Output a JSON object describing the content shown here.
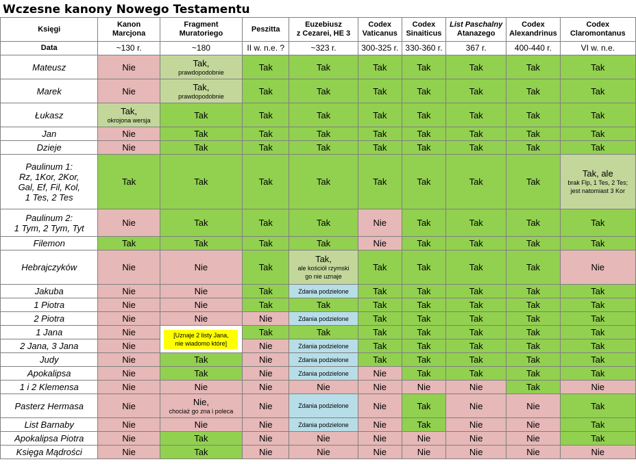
{
  "title": "Wczesne kanony Nowego Testamentu",
  "header": {
    "books_label": "Księgi",
    "date_label": "Data",
    "columns": [
      {
        "line1": "Kanon",
        "line2": "Marcjona",
        "date": "~130 r.",
        "italic": false
      },
      {
        "line1": "Fragment",
        "line2": "Muratoriego",
        "date": "~180",
        "italic": false
      },
      {
        "line1": "Peszitta",
        "line2": "",
        "date": "II w. n.e. ?",
        "italic": false
      },
      {
        "line1": "Euzebiusz",
        "line2": "z Cezarei, HE 3",
        "date": "~323 r.",
        "italic": false
      },
      {
        "line1": "Codex",
        "line2": "Vaticanus",
        "date": "300-325 r.",
        "italic": false
      },
      {
        "line1": "Codex",
        "line2": "Sinaiticus",
        "date": "330-360 r.",
        "italic": false
      },
      {
        "line1": "List Paschalny",
        "line2": "Atanazego",
        "date": "367 r.",
        "italic": true
      },
      {
        "line1": "Codex",
        "line2": "Alexandrinus",
        "date": "400-440 r.",
        "italic": false
      },
      {
        "line1": "Codex",
        "line2": "Claromontanus",
        "date": "VI w. n.e.",
        "italic": false
      }
    ]
  },
  "legend_colors": {
    "tak": "#92d050",
    "nie": "#e6b8b7",
    "probable": "#c4d79b",
    "disputed": "#b7dee8",
    "special": "#ffff00"
  },
  "rows": [
    {
      "book": [
        "Mateusz"
      ],
      "cells": [
        {
          "t": "Nie",
          "c": "nie"
        },
        {
          "t": "Tak,",
          "s": "prawdopodobnie",
          "c": "prob"
        },
        {
          "t": "Tak",
          "c": "tak"
        },
        {
          "t": "Tak",
          "c": "tak"
        },
        {
          "t": "Tak",
          "c": "tak"
        },
        {
          "t": "Tak",
          "c": "tak"
        },
        {
          "t": "Tak",
          "c": "tak"
        },
        {
          "t": "Tak",
          "c": "tak"
        },
        {
          "t": "Tak",
          "c": "tak"
        }
      ]
    },
    {
      "book": [
        "Marek"
      ],
      "cells": [
        {
          "t": "Nie",
          "c": "nie"
        },
        {
          "t": "Tak,",
          "s": "prawdopodobnie",
          "c": "prob"
        },
        {
          "t": "Tak",
          "c": "tak"
        },
        {
          "t": "Tak",
          "c": "tak"
        },
        {
          "t": "Tak",
          "c": "tak"
        },
        {
          "t": "Tak",
          "c": "tak"
        },
        {
          "t": "Tak",
          "c": "tak"
        },
        {
          "t": "Tak",
          "c": "tak"
        },
        {
          "t": "Tak",
          "c": "tak"
        }
      ]
    },
    {
      "book": [
        "Łukasz"
      ],
      "cells": [
        {
          "t": "Tak,",
          "s": "okrojona wersja",
          "c": "prob"
        },
        {
          "t": "Tak",
          "c": "tak"
        },
        {
          "t": "Tak",
          "c": "tak"
        },
        {
          "t": "Tak",
          "c": "tak"
        },
        {
          "t": "Tak",
          "c": "tak"
        },
        {
          "t": "Tak",
          "c": "tak"
        },
        {
          "t": "Tak",
          "c": "tak"
        },
        {
          "t": "Tak",
          "c": "tak"
        },
        {
          "t": "Tak",
          "c": "tak"
        }
      ]
    },
    {
      "book": [
        "Jan"
      ],
      "cells": [
        {
          "t": "Nie",
          "c": "nie"
        },
        {
          "t": "Tak",
          "c": "tak"
        },
        {
          "t": "Tak",
          "c": "tak"
        },
        {
          "t": "Tak",
          "c": "tak"
        },
        {
          "t": "Tak",
          "c": "tak"
        },
        {
          "t": "Tak",
          "c": "tak"
        },
        {
          "t": "Tak",
          "c": "tak"
        },
        {
          "t": "Tak",
          "c": "tak"
        },
        {
          "t": "Tak",
          "c": "tak"
        }
      ]
    },
    {
      "book": [
        "Dzieje"
      ],
      "cells": [
        {
          "t": "Nie",
          "c": "nie"
        },
        {
          "t": "Tak",
          "c": "tak"
        },
        {
          "t": "Tak",
          "c": "tak"
        },
        {
          "t": "Tak",
          "c": "tak"
        },
        {
          "t": "Tak",
          "c": "tak"
        },
        {
          "t": "Tak",
          "c": "tak"
        },
        {
          "t": "Tak",
          "c": "tak"
        },
        {
          "t": "Tak",
          "c": "tak"
        },
        {
          "t": "Tak",
          "c": "tak"
        }
      ]
    },
    {
      "book": [
        "Paulinum 1:",
        "Rz, 1Kor, 2Kor,",
        "Gal, Ef, Fil, Kol,",
        "1 Tes, 2 Tes"
      ],
      "cells": [
        {
          "t": "Tak",
          "c": "tak"
        },
        {
          "t": "Tak",
          "c": "tak"
        },
        {
          "t": "Tak",
          "c": "tak"
        },
        {
          "t": "Tak",
          "c": "tak"
        },
        {
          "t": "Tak",
          "c": "tak"
        },
        {
          "t": "Tak",
          "c": "tak"
        },
        {
          "t": "Tak",
          "c": "tak"
        },
        {
          "t": "Tak",
          "c": "tak"
        },
        {
          "t": "Tak, ale",
          "s": "brak Flp, 1 Tes, 2 Tes;",
          "s2": "jest natomiast 3 Kor",
          "c": "prob"
        }
      ]
    },
    {
      "book": [
        "Paulinum 2:",
        "1 Tym, 2 Tym, Tyt"
      ],
      "cells": [
        {
          "t": "Nie",
          "c": "nie"
        },
        {
          "t": "Tak",
          "c": "tak"
        },
        {
          "t": "Tak",
          "c": "tak"
        },
        {
          "t": "Tak",
          "c": "tak"
        },
        {
          "t": "Nie",
          "c": "nie"
        },
        {
          "t": "Tak",
          "c": "tak"
        },
        {
          "t": "Tak",
          "c": "tak"
        },
        {
          "t": "Tak",
          "c": "tak"
        },
        {
          "t": "Tak",
          "c": "tak"
        }
      ]
    },
    {
      "book": [
        "Filemon"
      ],
      "cells": [
        {
          "t": "Tak",
          "c": "tak"
        },
        {
          "t": "Tak",
          "c": "tak"
        },
        {
          "t": "Tak",
          "c": "tak"
        },
        {
          "t": "Tak",
          "c": "tak"
        },
        {
          "t": "Nie",
          "c": "nie"
        },
        {
          "t": "Tak",
          "c": "tak"
        },
        {
          "t": "Tak",
          "c": "tak"
        },
        {
          "t": "Tak",
          "c": "tak"
        },
        {
          "t": "Tak",
          "c": "tak"
        }
      ]
    },
    {
      "book": [
        "Hebrajczyków"
      ],
      "cells": [
        {
          "t": "Nie",
          "c": "nie"
        },
        {
          "t": "Nie",
          "c": "nie"
        },
        {
          "t": "Tak",
          "c": "tak"
        },
        {
          "t": "Tak,",
          "s": "ale kościół rzymski",
          "s2": "go nie uznaje",
          "c": "prob"
        },
        {
          "t": "Tak",
          "c": "tak"
        },
        {
          "t": "Tak",
          "c": "tak"
        },
        {
          "t": "Tak",
          "c": "tak"
        },
        {
          "t": "Tak",
          "c": "tak"
        },
        {
          "t": "Nie",
          "c": "nie"
        }
      ]
    },
    {
      "book": [
        "Jakuba"
      ],
      "cells": [
        {
          "t": "Nie",
          "c": "nie"
        },
        {
          "t": "Nie",
          "c": "nie"
        },
        {
          "t": "Tak",
          "c": "tak"
        },
        {
          "t": "",
          "s": "Zdania podzielone",
          "c": "disp"
        },
        {
          "t": "Tak",
          "c": "tak"
        },
        {
          "t": "Tak",
          "c": "tak"
        },
        {
          "t": "Tak",
          "c": "tak"
        },
        {
          "t": "Tak",
          "c": "tak"
        },
        {
          "t": "Tak",
          "c": "tak"
        }
      ]
    },
    {
      "book": [
        "1 Piotra"
      ],
      "cells": [
        {
          "t": "Nie",
          "c": "nie"
        },
        {
          "t": "Nie",
          "c": "nie"
        },
        {
          "t": "Tak",
          "c": "tak"
        },
        {
          "t": "Tak",
          "c": "tak"
        },
        {
          "t": "Tak",
          "c": "tak"
        },
        {
          "t": "Tak",
          "c": "tak"
        },
        {
          "t": "Tak",
          "c": "tak"
        },
        {
          "t": "Tak",
          "c": "tak"
        },
        {
          "t": "Tak",
          "c": "tak"
        }
      ]
    },
    {
      "book": [
        "2 Piotra"
      ],
      "cells": [
        {
          "t": "Nie",
          "c": "nie"
        },
        {
          "t": "Nie",
          "c": "nie"
        },
        {
          "t": "Nie",
          "c": "nie"
        },
        {
          "t": "",
          "s": "Zdania podzielone",
          "c": "disp"
        },
        {
          "t": "Tak",
          "c": "tak"
        },
        {
          "t": "Tak",
          "c": "tak"
        },
        {
          "t": "Tak",
          "c": "tak"
        },
        {
          "t": "Tak",
          "c": "tak"
        },
        {
          "t": "Tak",
          "c": "tak"
        }
      ]
    },
    {
      "book": [
        "1 Jana"
      ],
      "cells": [
        {
          "t": "Nie",
          "c": "nie"
        },
        {
          "t": "",
          "s": "[Uznaje 2 listy Jana,",
          "s2": "nie wiadomo które]",
          "c": "yel",
          "rowspan": 2
        },
        {
          "t": "Tak",
          "c": "tak"
        },
        {
          "t": "Tak",
          "c": "tak"
        },
        {
          "t": "Tak",
          "c": "tak"
        },
        {
          "t": "Tak",
          "c": "tak"
        },
        {
          "t": "Tak",
          "c": "tak"
        },
        {
          "t": "Tak",
          "c": "tak"
        },
        {
          "t": "Tak",
          "c": "tak"
        }
      ]
    },
    {
      "book": [
        "2 Jana, 3 Jana"
      ],
      "cells": [
        {
          "t": "Nie",
          "c": "nie"
        },
        {
          "skip": true
        },
        {
          "t": "Nie",
          "c": "nie"
        },
        {
          "t": "",
          "s": "Zdania podzielone",
          "c": "disp"
        },
        {
          "t": "Tak",
          "c": "tak"
        },
        {
          "t": "Tak",
          "c": "tak"
        },
        {
          "t": "Tak",
          "c": "tak"
        },
        {
          "t": "Tak",
          "c": "tak"
        },
        {
          "t": "Tak",
          "c": "tak"
        }
      ]
    },
    {
      "book": [
        "Judy"
      ],
      "cells": [
        {
          "t": "Nie",
          "c": "nie"
        },
        {
          "t": "Tak",
          "c": "tak"
        },
        {
          "t": "Nie",
          "c": "nie"
        },
        {
          "t": "",
          "s": "Zdania podzielone",
          "c": "disp"
        },
        {
          "t": "Tak",
          "c": "tak"
        },
        {
          "t": "Tak",
          "c": "tak"
        },
        {
          "t": "Tak",
          "c": "tak"
        },
        {
          "t": "Tak",
          "c": "tak"
        },
        {
          "t": "Tak",
          "c": "tak"
        }
      ]
    },
    {
      "book": [
        "Apokalipsa"
      ],
      "cells": [
        {
          "t": "Nie",
          "c": "nie"
        },
        {
          "t": "Tak",
          "c": "tak"
        },
        {
          "t": "Nie",
          "c": "nie"
        },
        {
          "t": "",
          "s": "Zdania podzielone",
          "c": "disp"
        },
        {
          "t": "Nie",
          "c": "nie"
        },
        {
          "t": "Tak",
          "c": "tak"
        },
        {
          "t": "Tak",
          "c": "tak"
        },
        {
          "t": "Tak",
          "c": "tak"
        },
        {
          "t": "Tak",
          "c": "tak"
        }
      ]
    },
    {
      "book": [
        "1 i 2 Klemensa"
      ],
      "cells": [
        {
          "t": "Nie",
          "c": "nie"
        },
        {
          "t": "Nie",
          "c": "nie"
        },
        {
          "t": "Nie",
          "c": "nie"
        },
        {
          "t": "Nie",
          "c": "nie"
        },
        {
          "t": "Nie",
          "c": "nie"
        },
        {
          "t": "Nie",
          "c": "nie"
        },
        {
          "t": "Nie",
          "c": "nie"
        },
        {
          "t": "Tak",
          "c": "tak"
        },
        {
          "t": "Nie",
          "c": "nie"
        }
      ]
    },
    {
      "book": [
        "Pasterz Hermasa"
      ],
      "cells": [
        {
          "t": "Nie",
          "c": "nie"
        },
        {
          "t": "Nie,",
          "s": "chociaż go zna i poleca",
          "c": "nie"
        },
        {
          "t": "Nie",
          "c": "nie"
        },
        {
          "t": "",
          "s": "Zdania podzielone",
          "c": "disp"
        },
        {
          "t": "Nie",
          "c": "nie"
        },
        {
          "t": "Tak",
          "c": "tak"
        },
        {
          "t": "Nie",
          "c": "nie"
        },
        {
          "t": "Nie",
          "c": "nie"
        },
        {
          "t": "Tak",
          "c": "tak"
        }
      ]
    },
    {
      "book": [
        "List Barnaby"
      ],
      "cells": [
        {
          "t": "Nie",
          "c": "nie"
        },
        {
          "t": "Nie",
          "c": "nie"
        },
        {
          "t": "Nie",
          "c": "nie"
        },
        {
          "t": "",
          "s": "Zdania podzielone",
          "c": "disp"
        },
        {
          "t": "Nie",
          "c": "nie"
        },
        {
          "t": "Tak",
          "c": "tak"
        },
        {
          "t": "Nie",
          "c": "nie"
        },
        {
          "t": "Nie",
          "c": "nie"
        },
        {
          "t": "Tak",
          "c": "tak"
        }
      ]
    },
    {
      "book": [
        "Apokalipsa Piotra"
      ],
      "cells": [
        {
          "t": "Nie",
          "c": "nie"
        },
        {
          "t": "Tak",
          "c": "tak"
        },
        {
          "t": "Nie",
          "c": "nie"
        },
        {
          "t": "Nie",
          "c": "nie"
        },
        {
          "t": "Nie",
          "c": "nie"
        },
        {
          "t": "Nie",
          "c": "nie"
        },
        {
          "t": "Nie",
          "c": "nie"
        },
        {
          "t": "Nie",
          "c": "nie"
        },
        {
          "t": "Tak",
          "c": "tak"
        }
      ]
    },
    {
      "book": [
        "Księga Mądrości"
      ],
      "cells": [
        {
          "t": "Nie",
          "c": "nie"
        },
        {
          "t": "Tak",
          "c": "tak"
        },
        {
          "t": "Nie",
          "c": "nie"
        },
        {
          "t": "Nie",
          "c": "nie"
        },
        {
          "t": "Nie",
          "c": "nie"
        },
        {
          "t": "Nie",
          "c": "nie"
        },
        {
          "t": "Nie",
          "c": "nie"
        },
        {
          "t": "Nie",
          "c": "nie"
        },
        {
          "t": "Nie",
          "c": "nie"
        }
      ]
    }
  ]
}
